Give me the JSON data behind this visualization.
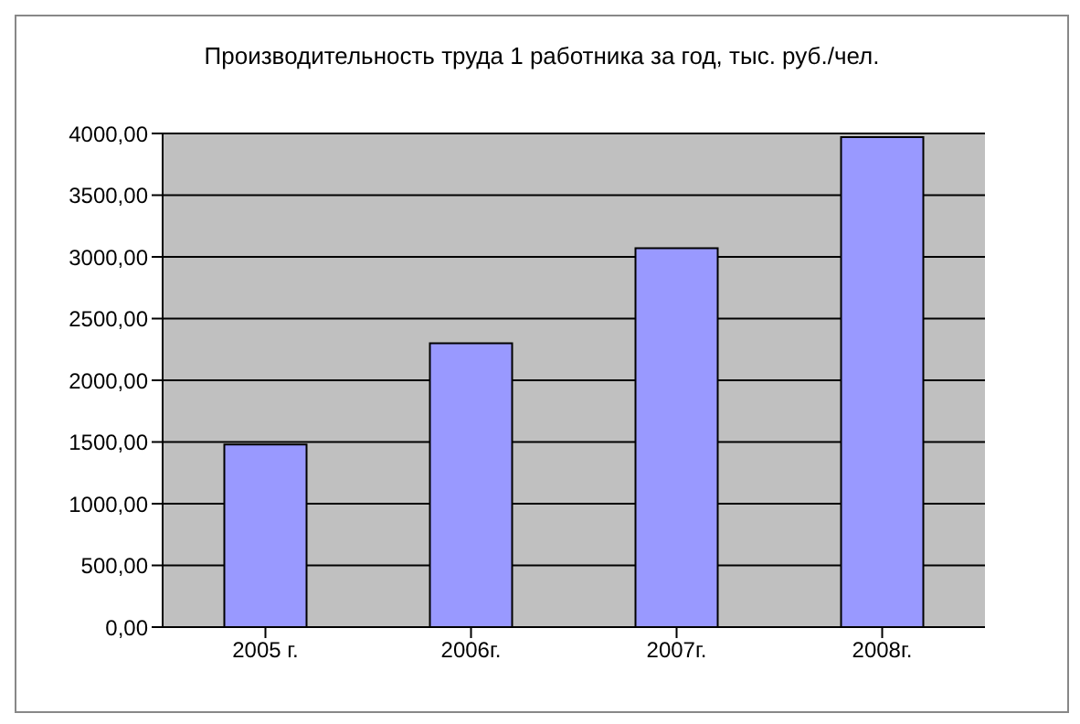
{
  "chart_data": {
    "type": "bar",
    "title": "Производительность труда 1 работника за год, тыс. руб./чел.",
    "categories": [
      "2005 г.",
      "2006г.",
      "2007г.",
      "2008г."
    ],
    "values": [
      1480,
      2300,
      3070,
      3970
    ],
    "color": "#9999ff",
    "ylim": [
      0,
      4000
    ],
    "yticks": [
      {
        "value": 0,
        "label": "0,00"
      },
      {
        "value": 500,
        "label": "500,00"
      },
      {
        "value": 1000,
        "label": "1000,00"
      },
      {
        "value": 1500,
        "label": "1500,00"
      },
      {
        "value": 2000,
        "label": "2000,00"
      },
      {
        "value": 2500,
        "label": "2500,00"
      },
      {
        "value": 3000,
        "label": "3000,00"
      },
      {
        "value": 3500,
        "label": "3500,00"
      },
      {
        "value": 4000,
        "label": "4000,00"
      }
    ],
    "grid": "y",
    "legend": false
  }
}
